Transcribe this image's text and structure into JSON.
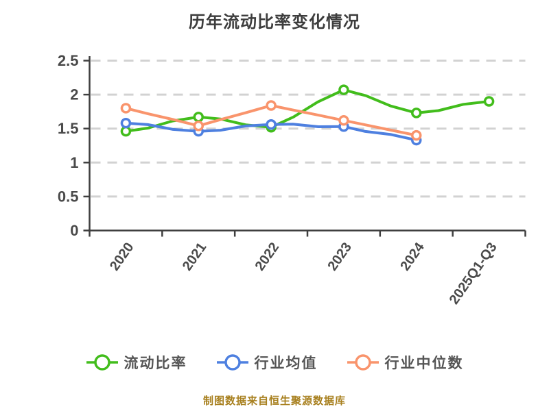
{
  "footer": {
    "text": "制图数据来自恒生聚源数据库",
    "color": "#a8801f"
  },
  "colors": {
    "title": "#3d3d3d",
    "axis": "#3f3f3f",
    "tick_label": "#4a4a4a",
    "gridline": "#d2d2d2",
    "legend_label": "#555555",
    "background": "#ffffff"
  },
  "chart_data": {
    "type": "line",
    "title": "历年流动比率变化情况",
    "categories": [
      "2020",
      "2021",
      "2022",
      "2023",
      "2024",
      "2025Q1-Q3"
    ],
    "series": [
      {
        "name": "流动比率",
        "color": "#42bd1c",
        "values": [
          1.46,
          1.67,
          1.52,
          2.07,
          1.73,
          1.9
        ]
      },
      {
        "name": "行业均值",
        "color": "#4e80e0",
        "values": [
          1.58,
          1.46,
          1.56,
          1.53,
          1.33,
          null
        ]
      },
      {
        "name": "行业中位数",
        "color": "#f9946c",
        "values": [
          1.8,
          1.54,
          1.84,
          1.62,
          1.4,
          null
        ]
      }
    ],
    "ylim": [
      0,
      2.5
    ],
    "yticks": [
      0,
      0.5,
      1,
      1.5,
      2,
      2.5
    ],
    "ytick_labels": [
      "0",
      "0.5",
      "1",
      "1.5",
      "2",
      "2.5"
    ],
    "xlabel": "",
    "ylabel": "",
    "grid": "horizontal dashed",
    "legend_position": "bottom",
    "style": "hand-drawn (xkcd-like), markers: white-filled circles with colored ring"
  }
}
